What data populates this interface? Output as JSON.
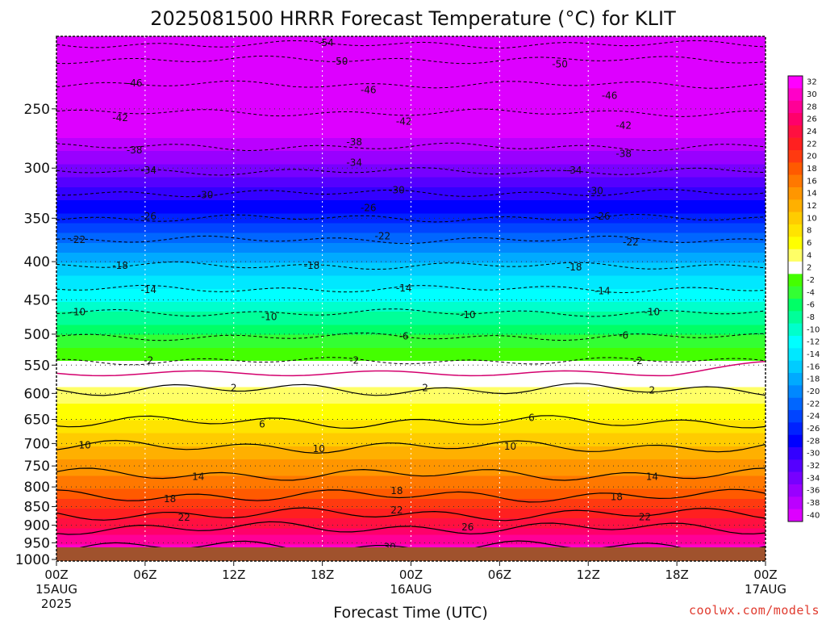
{
  "chart_data": {
    "type": "heatmap",
    "title": "2025081500 HRRR Forecast Temperature (°C) for KLIT",
    "xlabel": "Forecast Time (UTC)",
    "ylabel": "",
    "credit": "coolwx.com/models",
    "x_ticks": [
      {
        "hour": 0,
        "l1": "00Z",
        "l2": "15AUG",
        "l3": "2025"
      },
      {
        "hour": 6,
        "l1": "06Z",
        "l2": "",
        "l3": ""
      },
      {
        "hour": 12,
        "l1": "12Z",
        "l2": "",
        "l3": ""
      },
      {
        "hour": 18,
        "l1": "18Z",
        "l2": "",
        "l3": ""
      },
      {
        "hour": 24,
        "l1": "00Z",
        "l2": "16AUG",
        "l3": ""
      },
      {
        "hour": 30,
        "l1": "06Z",
        "l2": "",
        "l3": ""
      },
      {
        "hour": 36,
        "l1": "12Z",
        "l2": "",
        "l3": ""
      },
      {
        "hour": 42,
        "l1": "18Z",
        "l2": "",
        "l3": ""
      },
      {
        "hour": 48,
        "l1": "00Z",
        "l2": "17AUG",
        "l3": ""
      }
    ],
    "xlim": [
      0,
      48
    ],
    "pressure_ticks": [
      250,
      300,
      350,
      400,
      450,
      500,
      550,
      600,
      650,
      700,
      750,
      800,
      850,
      900,
      950,
      1000
    ],
    "ylim": [
      200,
      1005
    ],
    "y_scale": "log (pressure decreasing upward)",
    "grid": "dotted",
    "colorbar": {
      "levels": [
        "32",
        "30",
        "28",
        "26",
        "24",
        "22",
        "20",
        "18",
        "16",
        "14",
        "12",
        "10",
        "8",
        "6",
        "4",
        "2",
        "-2",
        "-4",
        "-6",
        "-8",
        "-10",
        "-12",
        "-14",
        "-16",
        "-18",
        "-20",
        "-22",
        "-24",
        "-26",
        "-28",
        "-30",
        "-32",
        "-34",
        "-36",
        "-38",
        "-40"
      ],
      "colors": [
        "#ff00ff",
        "#ff00c8",
        "#ff0096",
        "#ff006a",
        "#ff1040",
        "#ff2020",
        "#ff3a10",
        "#ff5a00",
        "#ff7800",
        "#ff9600",
        "#ffb000",
        "#ffcc00",
        "#ffe400",
        "#ffff00",
        "#ffff66",
        "#ffffff",
        "#44ff00",
        "#33ff33",
        "#00ff66",
        "#00ff99",
        "#00ffcc",
        "#00ffff",
        "#00e8ff",
        "#00ccff",
        "#00aaff",
        "#0088ff",
        "#0066ff",
        "#0044ff",
        "#0022ff",
        "#0000ff",
        "#3300ff",
        "#5500ff",
        "#7700ff",
        "#9900ff",
        "#bb00ff",
        "#dd00ff"
      ]
    },
    "temperature_profile": [
      {
        "p": 200,
        "t": -56
      },
      {
        "p": 250,
        "t": -44
      },
      {
        "p": 300,
        "t": -35
      },
      {
        "p": 350,
        "t": -27
      },
      {
        "p": 400,
        "t": -18
      },
      {
        "p": 450,
        "t": -12
      },
      {
        "p": 500,
        "t": -6
      },
      {
        "p": 550,
        "t": -1
      },
      {
        "p": 600,
        "t": 3
      },
      {
        "p": 650,
        "t": 6
      },
      {
        "p": 700,
        "t": 10
      },
      {
        "p": 750,
        "t": 13
      },
      {
        "p": 800,
        "t": 16
      },
      {
        "p": 850,
        "t": 20
      },
      {
        "p": 900,
        "t": 24
      },
      {
        "p": 950,
        "t": 28
      },
      {
        "p": 1000,
        "t": 31
      }
    ],
    "contours": [
      {
        "level": "-54",
        "p": 205,
        "at": [
          {
            "x": 0.38,
            "p": 204
          }
        ]
      },
      {
        "level": "-50",
        "p": 215,
        "at": [
          {
            "x": 0.4,
            "p": 216
          },
          {
            "x": 0.71,
            "p": 218
          }
        ]
      },
      {
        "level": "-46",
        "p": 232,
        "at": [
          {
            "x": 0.11,
            "p": 231
          },
          {
            "x": 0.44,
            "p": 236
          },
          {
            "x": 0.78,
            "p": 240
          }
        ]
      },
      {
        "level": "-42",
        "p": 253,
        "at": [
          {
            "x": 0.09,
            "p": 257
          },
          {
            "x": 0.49,
            "p": 260
          },
          {
            "x": 0.8,
            "p": 263
          }
        ]
      },
      {
        "level": "-38",
        "p": 281,
        "at": [
          {
            "x": 0.11,
            "p": 284
          },
          {
            "x": 0.42,
            "p": 277
          },
          {
            "x": 0.8,
            "p": 287
          }
        ]
      },
      {
        "level": "-34",
        "p": 303,
        "at": [
          {
            "x": 0.13,
            "p": 302
          },
          {
            "x": 0.42,
            "p": 295
          },
          {
            "x": 0.73,
            "p": 302
          }
        ]
      },
      {
        "level": "-30",
        "p": 324,
        "at": [
          {
            "x": 0.21,
            "p": 326
          },
          {
            "x": 0.48,
            "p": 321
          },
          {
            "x": 0.76,
            "p": 322
          }
        ]
      },
      {
        "level": "-26",
        "p": 350,
        "at": [
          {
            "x": 0.13,
            "p": 348
          },
          {
            "x": 0.44,
            "p": 339
          },
          {
            "x": 0.77,
            "p": 348
          }
        ]
      },
      {
        "level": "-22",
        "p": 374,
        "at": [
          {
            "x": 0.03,
            "p": 374
          },
          {
            "x": 0.46,
            "p": 370
          },
          {
            "x": 0.81,
            "p": 377
          }
        ]
      },
      {
        "level": "-18",
        "p": 405,
        "at": [
          {
            "x": 0.09,
            "p": 405
          },
          {
            "x": 0.36,
            "p": 405
          },
          {
            "x": 0.73,
            "p": 407
          }
        ]
      },
      {
        "level": "-14",
        "p": 435,
        "at": [
          {
            "x": 0.13,
            "p": 436
          },
          {
            "x": 0.49,
            "p": 434
          },
          {
            "x": 0.77,
            "p": 438
          }
        ]
      },
      {
        "level": "-10",
        "p": 468,
        "at": [
          {
            "x": 0.03,
            "p": 467
          },
          {
            "x": 0.3,
            "p": 474
          },
          {
            "x": 0.58,
            "p": 471
          },
          {
            "x": 0.84,
            "p": 467
          }
        ]
      },
      {
        "level": "-6",
        "p": 504,
        "at": [
          {
            "x": 0.49,
            "p": 503
          },
          {
            "x": 0.8,
            "p": 502
          }
        ]
      },
      {
        "level": "-2",
        "p": 543,
        "at": [
          {
            "x": 0.13,
            "p": 542
          },
          {
            "x": 0.42,
            "p": 542
          },
          {
            "x": 0.82,
            "p": 543
          }
        ]
      },
      {
        "level": "2",
        "p": 593,
        "at": [
          {
            "x": 0.25,
            "p": 590
          },
          {
            "x": 0.52,
            "p": 590
          },
          {
            "x": 0.84,
            "p": 594
          }
        ]
      },
      {
        "level": "6",
        "p": 655,
        "at": [
          {
            "x": 0.29,
            "p": 660
          },
          {
            "x": 0.67,
            "p": 647
          }
        ]
      },
      {
        "level": "10",
        "p": 707,
        "at": [
          {
            "x": 0.04,
            "p": 704
          },
          {
            "x": 0.37,
            "p": 712
          },
          {
            "x": 0.64,
            "p": 706
          }
        ]
      },
      {
        "level": "14",
        "p": 770,
        "at": [
          {
            "x": 0.2,
            "p": 775
          },
          {
            "x": 0.84,
            "p": 775
          }
        ]
      },
      {
        "level": "18",
        "p": 822,
        "at": [
          {
            "x": 0.16,
            "p": 830
          },
          {
            "x": 0.48,
            "p": 810
          },
          {
            "x": 0.79,
            "p": 825
          }
        ]
      },
      {
        "level": "22",
        "p": 870,
        "at": [
          {
            "x": 0.18,
            "p": 879
          },
          {
            "x": 0.48,
            "p": 859
          },
          {
            "x": 0.83,
            "p": 878
          }
        ]
      },
      {
        "level": "26",
        "p": 908,
        "at": [
          {
            "x": 0.58,
            "p": 905
          }
        ]
      },
      {
        "level": "30",
        "p": 962,
        "at": [
          {
            "x": 0.47,
            "p": 962
          }
        ]
      }
    ]
  }
}
